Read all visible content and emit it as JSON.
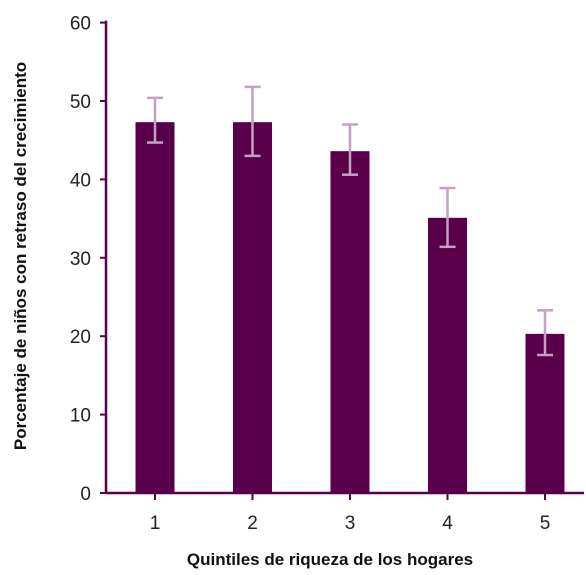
{
  "chart_data": {
    "type": "bar",
    "title": "",
    "xlabel": "Quintiles de riqueza de los hogares",
    "ylabel": "Porcentaje de niños con retraso del crecimiento",
    "categories": [
      "1",
      "2",
      "3",
      "4",
      "5"
    ],
    "values": [
      47.3,
      47.3,
      43.6,
      35.1,
      20.3
    ],
    "error_low": [
      44.7,
      43.0,
      40.6,
      31.4,
      17.6
    ],
    "error_high": [
      50.4,
      51.8,
      47.0,
      38.9,
      23.3
    ],
    "ylim": [
      0,
      60
    ],
    "yticks": [
      "0",
      "10",
      "20",
      "30",
      "40",
      "50",
      "60"
    ],
    "grid": false,
    "legend": "none",
    "colors": {
      "bar": "#5a004a",
      "error_bar": "#c4a0c4",
      "axis": "#5a004a"
    }
  }
}
